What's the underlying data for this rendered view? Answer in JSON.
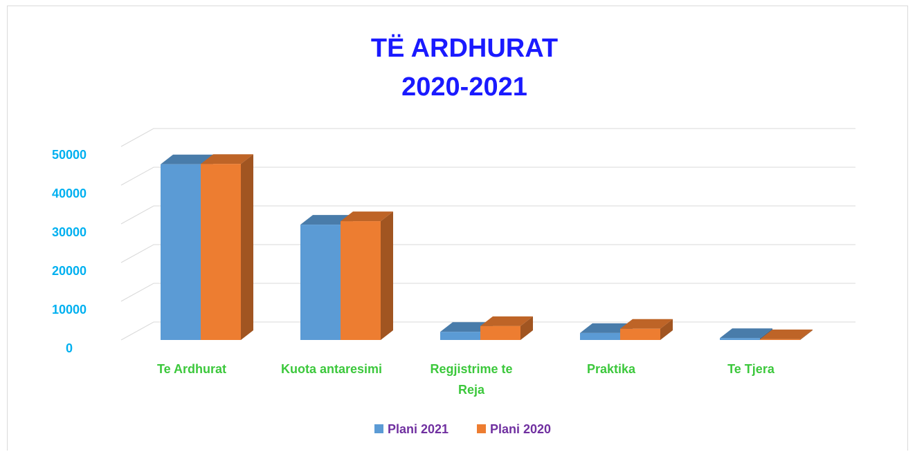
{
  "chart_data": {
    "type": "bar3d",
    "title": "TË ARDHURAT",
    "subtitle": "2020-2021",
    "categories": [
      "Te Ardhurat",
      "Kuota antaresimi",
      "Regjistrime te Reja",
      "Praktika",
      "Te Tjera"
    ],
    "series": [
      {
        "name": "Plani 2021",
        "color": "#5b9bd5",
        "values": [
          45400,
          29800,
          2100,
          1800,
          500
        ]
      },
      {
        "name": "Plani 2020",
        "color": "#ed7d31",
        "values": [
          45500,
          30700,
          3600,
          2900,
          200
        ]
      }
    ],
    "ylim": [
      0,
      50000
    ],
    "yticks": [
      0,
      10000,
      20000,
      30000,
      40000,
      50000
    ],
    "grid": true,
    "legend": "bottom"
  }
}
